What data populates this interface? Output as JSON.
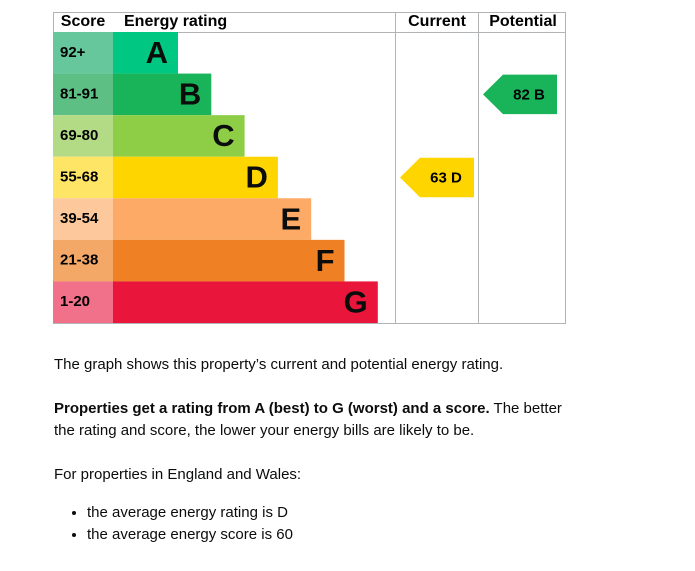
{
  "epc": {
    "headers": {
      "score": "Score",
      "rating": "Energy rating",
      "current": "Current",
      "potential": "Potential"
    },
    "bands": [
      {
        "range": "92+",
        "letter": "A",
        "color": "#00c781",
        "score_color": "#66c79c"
      },
      {
        "range": "81-91",
        "letter": "B",
        "color": "#19b459",
        "score_color": "#5ebf84"
      },
      {
        "range": "69-80",
        "letter": "C",
        "color": "#8dce46",
        "score_color": "#b3db86"
      },
      {
        "range": "55-68",
        "letter": "D",
        "color": "#ffd500",
        "score_color": "#ffe566"
      },
      {
        "range": "39-54",
        "letter": "E",
        "color": "#fcaa65",
        "score_color": "#fdc89b"
      },
      {
        "range": "21-38",
        "letter": "F",
        "color": "#ef8023",
        "score_color": "#f4a867"
      },
      {
        "range": "1-20",
        "letter": "G",
        "color": "#e9153b",
        "score_color": "#f07189"
      }
    ],
    "current": {
      "score": 63,
      "rating": "D"
    },
    "potential": {
      "score": 82,
      "rating": "B"
    }
  },
  "text": {
    "para1": "The graph shows this property’s current and potential energy rating.",
    "para2_bold": "Properties get a rating from A (best) to G (worst) and a score.",
    "para2_rest": "The better the rating and score, the lower your energy bills are likely to be.",
    "para3": "For properties in England and Wales:",
    "bullets": [
      "the average energy rating is D",
      "the average energy score is 60"
    ]
  }
}
